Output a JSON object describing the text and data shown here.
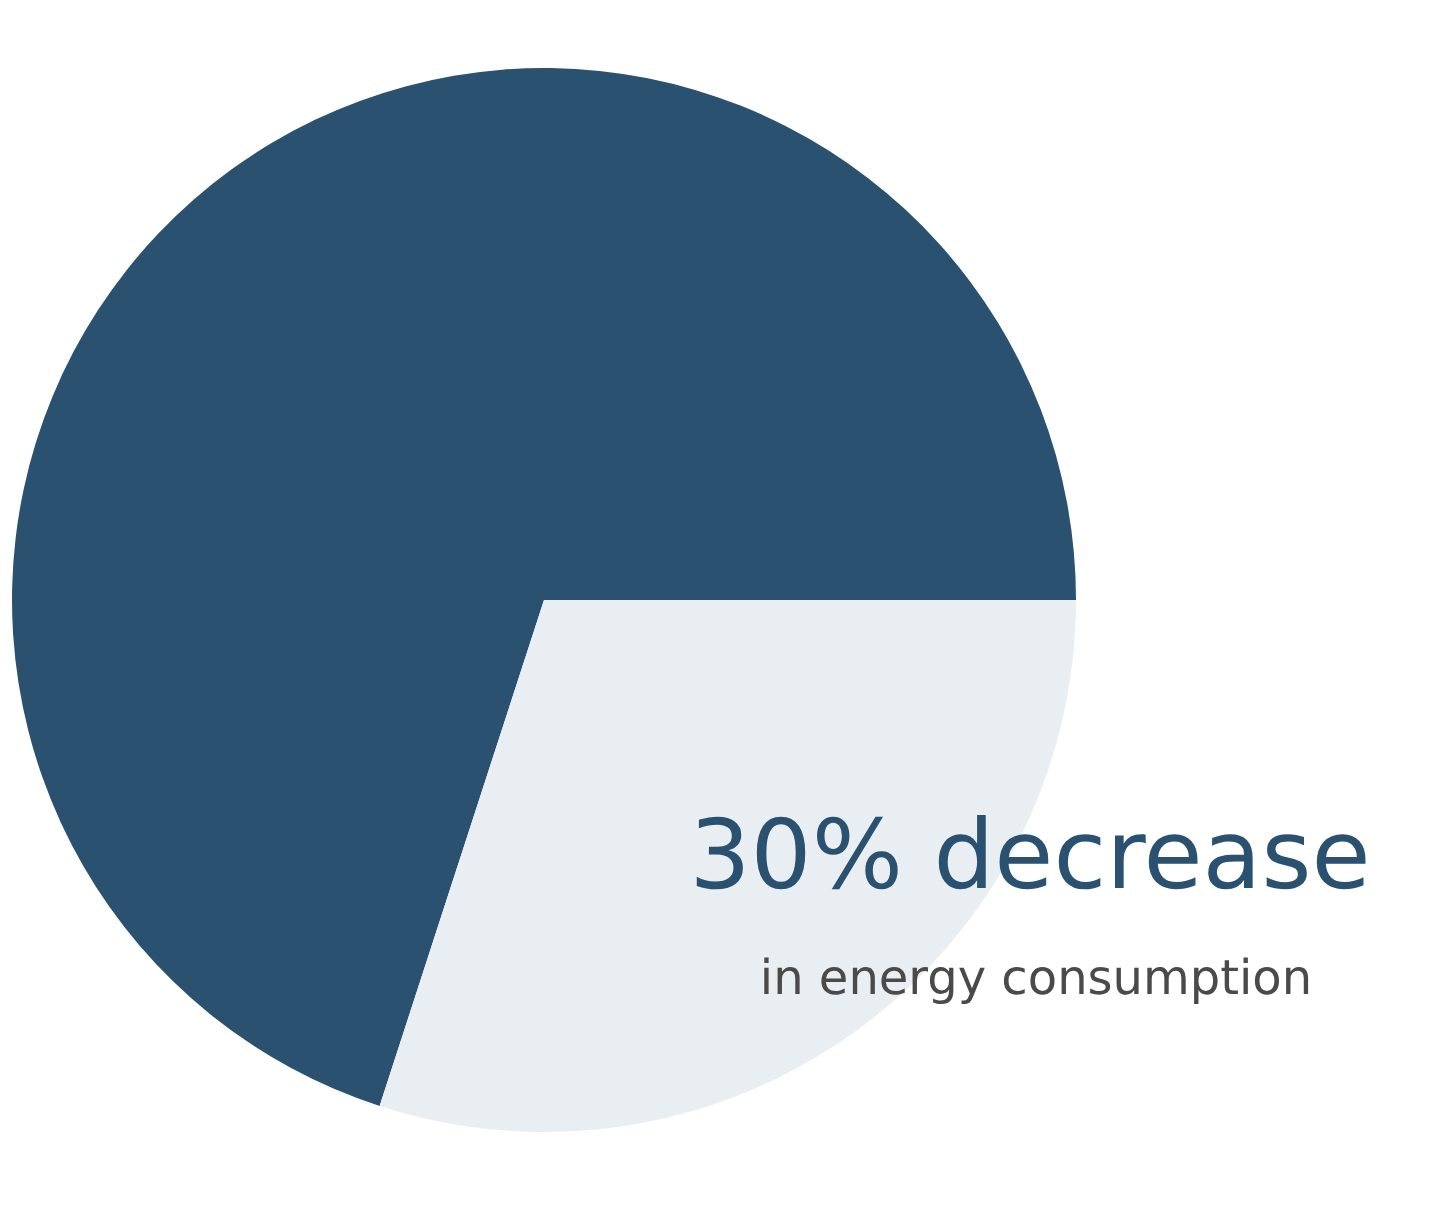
{
  "chart_data": {
    "type": "pie",
    "categories": [
      null,
      null
    ],
    "values": [
      70,
      30
    ],
    "colors": [
      "#2b5170",
      "#e9eef2"
    ],
    "annotations": [
      "30% decrease",
      "in energy consumption"
    ]
  }
}
